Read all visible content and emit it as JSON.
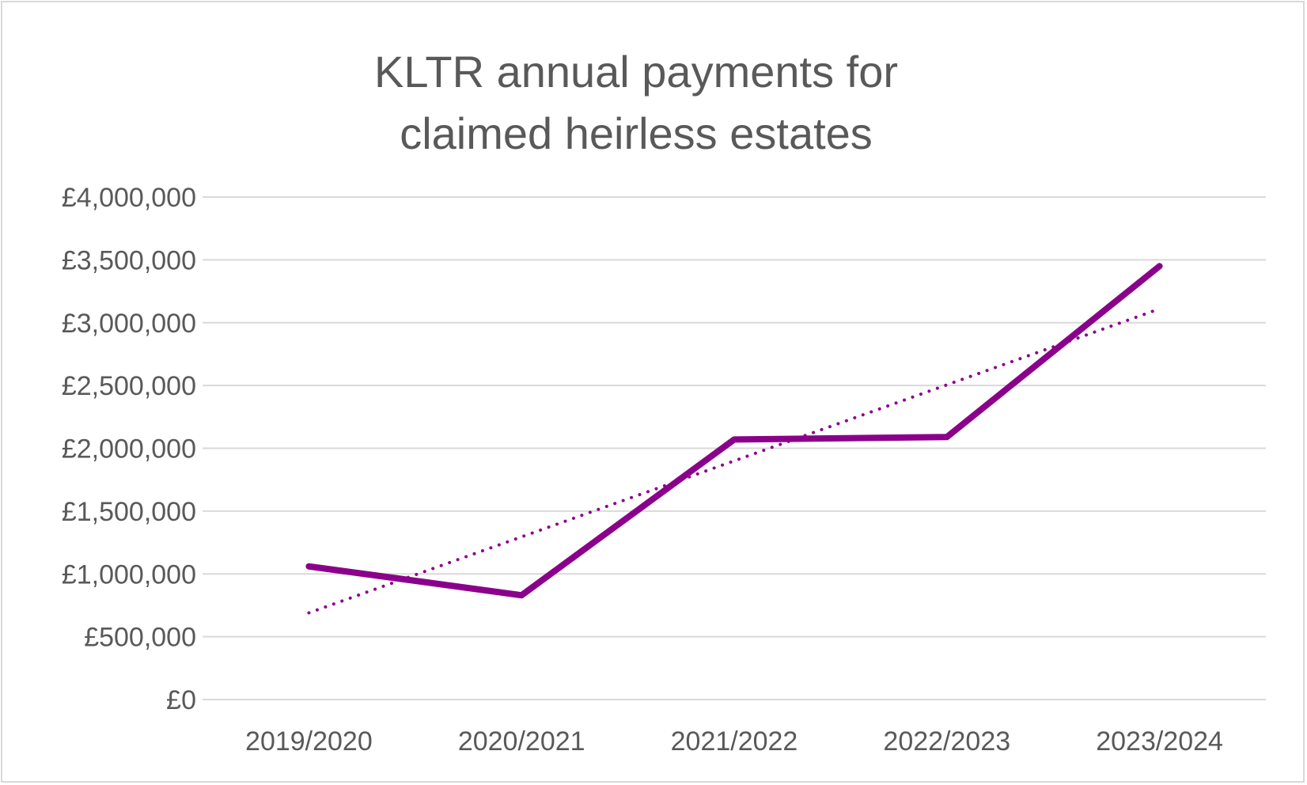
{
  "chart_data": {
    "type": "line",
    "title_lines": [
      "KLTR annual payments for",
      "claimed heirless estates"
    ],
    "xlabel": "",
    "ylabel": "",
    "categories": [
      "2019/2020",
      "2020/2021",
      "2021/2022",
      "2022/2023",
      "2023/2024"
    ],
    "series": [
      {
        "values": [
          1060000,
          830000,
          2070000,
          2090000,
          3450000
        ],
        "color": "#8b008b",
        "style": "solid"
      }
    ],
    "trendline": {
      "type": "linear",
      "values": [
        690000,
        1295000,
        1900000,
        2505000,
        3110000
      ],
      "color": "#8b008b",
      "style": "dotted"
    },
    "ylim": [
      0,
      4000000
    ],
    "y_ticks": [
      {
        "value": 0,
        "label": "£0"
      },
      {
        "value": 500000,
        "label": "£500,000"
      },
      {
        "value": 1000000,
        "label": "£1,000,000"
      },
      {
        "value": 1500000,
        "label": "£1,500,000"
      },
      {
        "value": 2000000,
        "label": "£2,000,000"
      },
      {
        "value": 2500000,
        "label": "£2,500,000"
      },
      {
        "value": 3000000,
        "label": "£3,000,000"
      },
      {
        "value": 3500000,
        "label": "£3,500,000"
      },
      {
        "value": 4000000,
        "label": "£4,000,000"
      }
    ],
    "grid": true,
    "legend": "none",
    "colors": {
      "gridline": "#d9d9d9",
      "text": "#595959",
      "border": "#d9d9d9"
    }
  }
}
